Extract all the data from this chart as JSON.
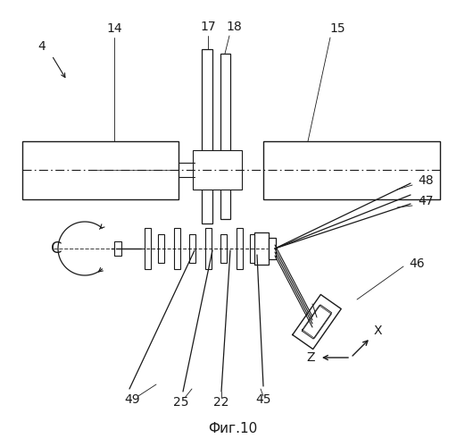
{
  "title": "Фиг.10",
  "bg_color": "#ffffff",
  "line_color": "#1a1a1a",
  "label_14": "14",
  "label_15": "15",
  "label_17": "17",
  "label_18": "18",
  "label_4": "4",
  "label_C": "C",
  "label_25": "25",
  "label_22": "22",
  "label_45": "45",
  "label_46": "46",
  "label_47": "47",
  "label_48": "48",
  "label_49": "49",
  "label_X": "X",
  "label_Z": "Z",
  "figsize": [
    5.21,
    5.0
  ],
  "dpi": 100
}
